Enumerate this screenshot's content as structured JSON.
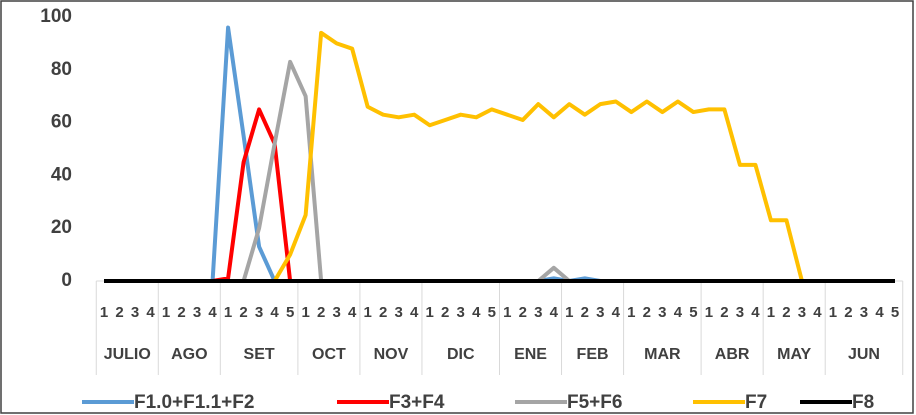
{
  "chart_data": {
    "type": "line",
    "groups": [
      {
        "label": "JULIO",
        "weeks": [
          "1",
          "2",
          "3",
          "4"
        ]
      },
      {
        "label": "AGO",
        "weeks": [
          "1",
          "2",
          "3",
          "4"
        ]
      },
      {
        "label": "SET",
        "weeks": [
          "1",
          "2",
          "3",
          "4",
          "5"
        ]
      },
      {
        "label": "OCT",
        "weeks": [
          "1",
          "2",
          "3",
          "4"
        ]
      },
      {
        "label": "NOV",
        "weeks": [
          "1",
          "2",
          "3",
          "4"
        ]
      },
      {
        "label": "DIC",
        "weeks": [
          "1",
          "2",
          "3",
          "4",
          "5"
        ]
      },
      {
        "label": "ENE",
        "weeks": [
          "1",
          "2",
          "3",
          "4"
        ]
      },
      {
        "label": "FEB",
        "weeks": [
          "1",
          "2",
          "3",
          "4"
        ]
      },
      {
        "label": "MAR",
        "weeks": [
          "1",
          "2",
          "3",
          "4",
          "5"
        ]
      },
      {
        "label": "ABR",
        "weeks": [
          "1",
          "2",
          "3",
          "4"
        ]
      },
      {
        "label": "MAY",
        "weeks": [
          "1",
          "2",
          "3",
          "4"
        ]
      },
      {
        "label": "JUN",
        "weeks": [
          "1",
          "2",
          "3",
          "4",
          "5"
        ]
      }
    ],
    "series": [
      {
        "name": "F1.0+F1.1+F2",
        "color": "#5b9bd5",
        "values": [
          0,
          0,
          0,
          0,
          0,
          0,
          0,
          0,
          96,
          55,
          13,
          0,
          0,
          0,
          0,
          0,
          0,
          0,
          0,
          0,
          0,
          0,
          0,
          0,
          0,
          0,
          0,
          0,
          0,
          1,
          0,
          1,
          0,
          0,
          0,
          0,
          0,
          0,
          0,
          0,
          0,
          0,
          0,
          0,
          0,
          0,
          0,
          0,
          0,
          0,
          0,
          0
        ]
      },
      {
        "name": "F3+F4",
        "color": "#ff0000",
        "values": [
          0,
          0,
          0,
          0,
          0,
          0,
          0,
          0,
          1,
          45,
          65,
          52,
          0,
          0,
          0,
          0,
          0,
          0,
          0,
          0,
          0,
          0,
          0,
          0,
          0,
          0,
          0,
          0,
          0,
          0,
          0,
          0,
          0,
          0,
          0,
          0,
          0,
          0,
          0,
          0,
          0,
          0,
          0,
          0,
          0,
          0,
          0,
          0,
          0,
          0,
          0,
          0
        ]
      },
      {
        "name": "F5+F6",
        "color": "#a5a5a5",
        "values": [
          0,
          0,
          0,
          0,
          0,
          0,
          0,
          0,
          0,
          0,
          20,
          52,
          83,
          70,
          0,
          0,
          0,
          0,
          0,
          0,
          0,
          0,
          0,
          0,
          0,
          0,
          0,
          0,
          0,
          5,
          0,
          0,
          0,
          0,
          0,
          0,
          0,
          0,
          0,
          0,
          0,
          0,
          0,
          0,
          0,
          0,
          0,
          0,
          0,
          0,
          0,
          0
        ]
      },
      {
        "name": "F7",
        "color": "#ffc000",
        "values": [
          0,
          0,
          0,
          0,
          0,
          0,
          0,
          0,
          0,
          0,
          0,
          0,
          10,
          25,
          94,
          90,
          88,
          66,
          63,
          62,
          63,
          59,
          61,
          63,
          62,
          65,
          63,
          61,
          67,
          62,
          67,
          63,
          67,
          68,
          64,
          68,
          64,
          68,
          64,
          65,
          65,
          44,
          44,
          23,
          23,
          0,
          0,
          0,
          0,
          0,
          0,
          0
        ]
      },
      {
        "name": "F8",
        "color": "#000000",
        "values": [
          0,
          0,
          0,
          0,
          0,
          0,
          0,
          0,
          0,
          0,
          0,
          0,
          0,
          0,
          0,
          0,
          0,
          0,
          0,
          0,
          0,
          0,
          0,
          0,
          0,
          0,
          0,
          0,
          0,
          0,
          0,
          0,
          0,
          0,
          0,
          0,
          0,
          0,
          0,
          0,
          0,
          0,
          0,
          0,
          0,
          0,
          0,
          0,
          0,
          0,
          0,
          0
        ]
      }
    ],
    "ylim": [
      0,
      100
    ],
    "yticks": [
      0,
      20,
      40,
      60,
      80,
      100
    ]
  }
}
